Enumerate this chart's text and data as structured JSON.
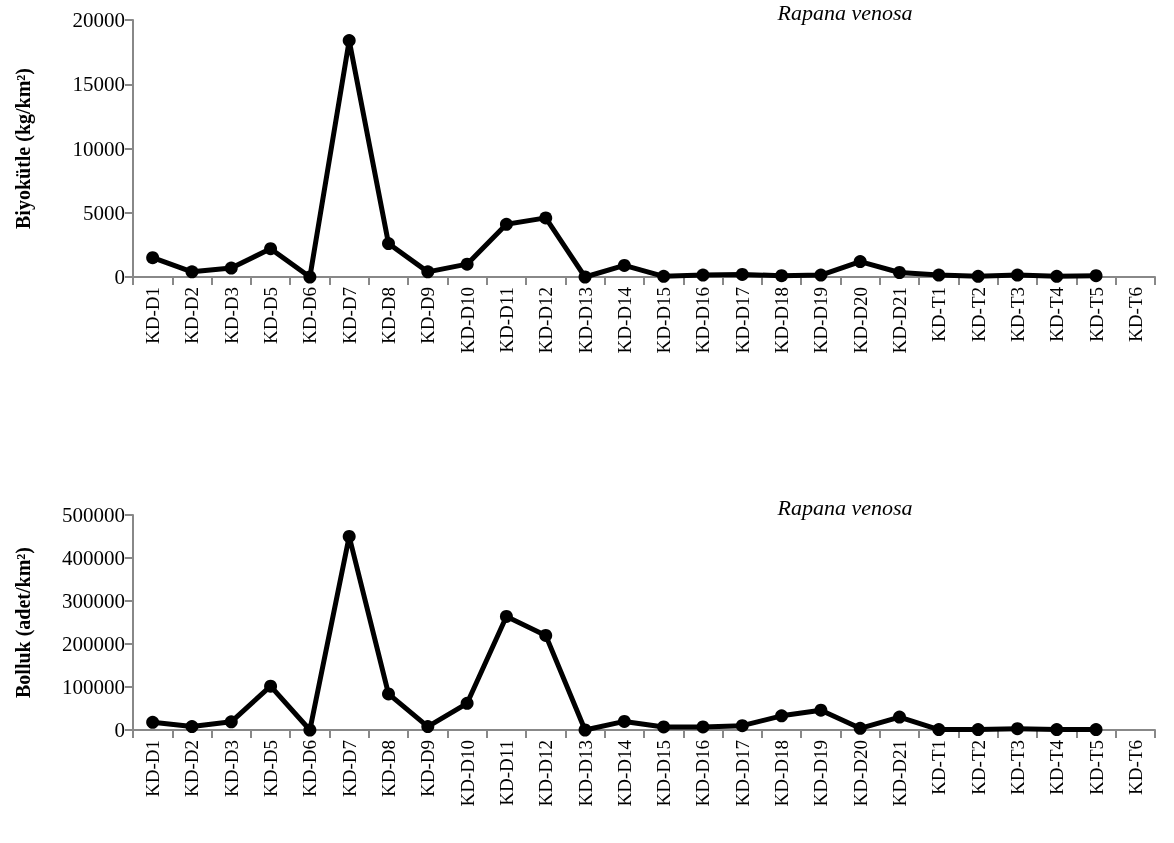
{
  "chart_data": [
    {
      "type": "line",
      "title": "Rapana venosa",
      "ylabel": "Biyokütle (kg/km²)",
      "categories": [
        "KD-D1",
        "KD-D2",
        "KD-D3",
        "KD-D5",
        "KD-D6",
        "KD-D7",
        "KD-D8",
        "KD-D9",
        "KD-D10",
        "KD-D11",
        "KD-D12",
        "KD-D13",
        "KD-D14",
        "KD-D15",
        "KD-D16",
        "KD-D17",
        "KD-D18",
        "KD-D19",
        "KD-D20",
        "KD-D21",
        "KD-T1",
        "KD-T2",
        "KD-T3",
        "KD-T4",
        "KD-T5",
        "KD-T6"
      ],
      "series": [
        {
          "color": "#000000",
          "values": [
            1500,
            400,
            700,
            2200,
            0,
            18400,
            2600,
            400,
            1000,
            4100,
            4600,
            0,
            900,
            50,
            150,
            200,
            100,
            150,
            1200,
            350,
            150,
            50,
            150,
            50,
            100,
            null
          ]
        }
      ],
      "ylim": [
        0,
        20000
      ],
      "yticks": [
        0,
        5000,
        10000,
        15000,
        20000
      ],
      "grid": false,
      "marker": "circle",
      "line_style": "solid"
    },
    {
      "type": "line",
      "title": "Rapana venosa",
      "ylabel": "Bolluk (adet/km²)",
      "categories": [
        "KD-D1",
        "KD-D2",
        "KD-D3",
        "KD-D5",
        "KD-D6",
        "KD-D7",
        "KD-D8",
        "KD-D9",
        "KD-D10",
        "KD-D11",
        "KD-D12",
        "KD-D13",
        "KD-D14",
        "KD-D15",
        "KD-D16",
        "KD-D17",
        "KD-D18",
        "KD-D19",
        "KD-D20",
        "KD-D21",
        "KD-T1",
        "KD-T2",
        "KD-T3",
        "KD-T4",
        "KD-T5",
        "KD-T6"
      ],
      "series": [
        {
          "color": "#000000",
          "values": [
            18000,
            8000,
            19000,
            102000,
            0,
            450000,
            84000,
            8000,
            62000,
            264000,
            220000,
            0,
            20000,
            7000,
            7000,
            10000,
            33000,
            46000,
            4000,
            30000,
            1000,
            1000,
            3000,
            1000,
            1000,
            null
          ]
        }
      ],
      "ylim": [
        0,
        500000
      ],
      "yticks": [
        0,
        100000,
        200000,
        300000,
        400000,
        500000
      ],
      "grid": false,
      "marker": "circle",
      "line_style": "solid"
    }
  ]
}
